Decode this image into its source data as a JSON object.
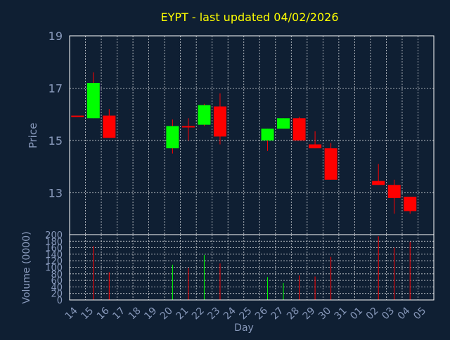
{
  "theme": {
    "background": "#0f1f33",
    "frame": "#ffffff",
    "grid": "#ffffff",
    "title_color": "#ffff00",
    "axis_text": "#8899bb",
    "axis_label": "#8899bb",
    "up_color": "#00ff00",
    "down_color": "#ff0000",
    "wick_color": "#ff0000"
  },
  "chart_data": [
    {
      "type": "candlestick",
      "title": "EYPT - last updated 04/02/2026",
      "ylabel": "Price",
      "ylim": [
        11.4,
        19
      ],
      "yticks": [
        13,
        15,
        17,
        19
      ],
      "grid": true,
      "x_tick_labels": [
        "14",
        "15",
        "16",
        "17",
        "18",
        "19",
        "20",
        "21",
        "22",
        "23",
        "24",
        "25",
        "26",
        "27",
        "28",
        "29",
        "30",
        "31",
        "01",
        "02",
        "03",
        "04",
        "05"
      ],
      "candles": [
        {
          "x": "14",
          "open": 15.95,
          "high": 15.95,
          "low": 15.95,
          "close": 15.95
        },
        {
          "x": "15",
          "open": 15.85,
          "high": 17.6,
          "low": 15.85,
          "close": 17.2
        },
        {
          "x": "16",
          "open": 15.95,
          "high": 16.2,
          "low": 15.1,
          "close": 15.1
        },
        {
          "x": "20",
          "open": 14.7,
          "high": 15.8,
          "low": 14.5,
          "close": 15.55
        },
        {
          "x": "21",
          "open": 15.55,
          "high": 15.85,
          "low": 15.0,
          "close": 15.55
        },
        {
          "x": "22",
          "open": 15.6,
          "high": 16.4,
          "low": 15.55,
          "close": 16.35
        },
        {
          "x": "23",
          "open": 16.3,
          "high": 16.8,
          "low": 14.85,
          "close": 15.15
        },
        {
          "x": "26",
          "open": 15.0,
          "high": 15.45,
          "low": 14.6,
          "close": 15.45
        },
        {
          "x": "27",
          "open": 15.45,
          "high": 15.85,
          "low": 15.45,
          "close": 15.85
        },
        {
          "x": "28",
          "open": 15.85,
          "high": 15.9,
          "low": 15.0,
          "close": 15.0
        },
        {
          "x": "29",
          "open": 14.85,
          "high": 15.35,
          "low": 14.7,
          "close": 14.7
        },
        {
          "x": "30",
          "open": 14.7,
          "high": 14.9,
          "low": 13.5,
          "close": 13.5
        },
        {
          "x": "02",
          "open": 13.45,
          "high": 14.1,
          "low": 13.3,
          "close": 13.3
        },
        {
          "x": "03",
          "open": 13.3,
          "high": 13.5,
          "low": 12.2,
          "close": 12.8
        },
        {
          "x": "04",
          "open": 12.85,
          "high": 12.85,
          "low": 12.2,
          "close": 12.3
        }
      ]
    },
    {
      "type": "bar",
      "xlabel": "Day",
      "ylabel": "Volume (0000)",
      "ylim": [
        0,
        200
      ],
      "yticks": [
        0,
        20,
        40,
        60,
        80,
        100,
        120,
        140,
        160,
        180,
        200
      ],
      "grid": true,
      "x_tick_labels": [
        "14",
        "15",
        "16",
        "17",
        "18",
        "19",
        "20",
        "21",
        "22",
        "23",
        "24",
        "25",
        "26",
        "27",
        "28",
        "29",
        "30",
        "31",
        "01",
        "02",
        "03",
        "04",
        "05"
      ],
      "bars": [
        {
          "x": "15",
          "value": 165,
          "up": false
        },
        {
          "x": "16",
          "value": 85,
          "up": false
        },
        {
          "x": "20",
          "value": 108,
          "up": true
        },
        {
          "x": "21",
          "value": 98,
          "up": false
        },
        {
          "x": "22",
          "value": 138,
          "up": true
        },
        {
          "x": "23",
          "value": 112,
          "up": false
        },
        {
          "x": "26",
          "value": 70,
          "up": true
        },
        {
          "x": "27",
          "value": 52,
          "up": true
        },
        {
          "x": "28",
          "value": 75,
          "up": false
        },
        {
          "x": "29",
          "value": 72,
          "up": false
        },
        {
          "x": "30",
          "value": 132,
          "up": false
        },
        {
          "x": "02",
          "value": 195,
          "up": false
        },
        {
          "x": "03",
          "value": 160,
          "up": false
        },
        {
          "x": "04",
          "value": 178,
          "up": false
        }
      ]
    }
  ]
}
